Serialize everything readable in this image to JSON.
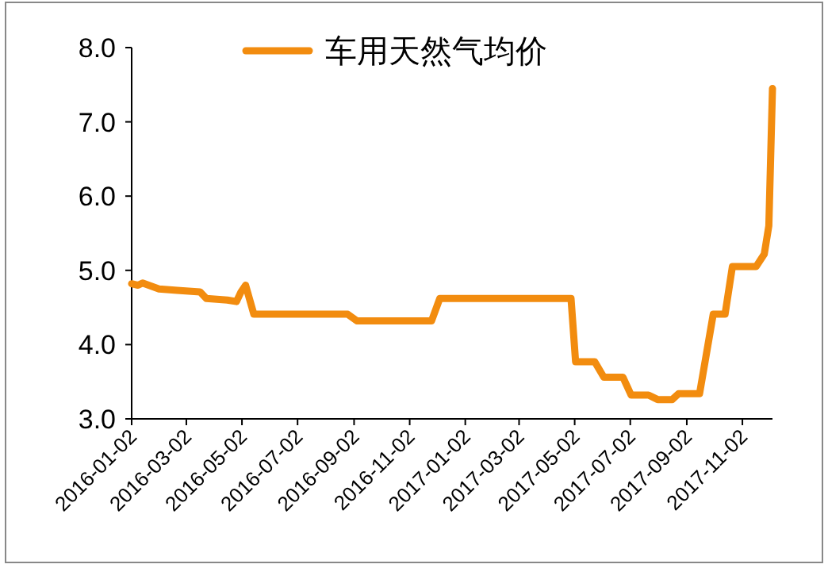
{
  "chart_data": {
    "type": "line",
    "legend": "top",
    "marker": "none",
    "line_style": "solid",
    "grid": false,
    "x": [
      "2016-01-02",
      "2016-01-09",
      "2016-01-14",
      "2016-02-01",
      "2016-02-21",
      "2016-03-17",
      "2016-03-24",
      "2016-04-16",
      "2016-04-26",
      "2016-05-01",
      "2016-05-06",
      "2016-05-15",
      "2016-08-26",
      "2016-09-05",
      "2016-11-26",
      "2016-12-05",
      "2017-04-28",
      "2017-05-03",
      "2017-05-24",
      "2017-06-03",
      "2017-06-24",
      "2017-07-03",
      "2017-07-22",
      "2017-08-01",
      "2017-08-17",
      "2017-08-24",
      "2017-09-16",
      "2017-10-01",
      "2017-10-14",
      "2017-10-22",
      "2017-11-17",
      "2017-11-26",
      "2017-12-01",
      "2017-12-05"
    ],
    "series": [
      {
        "name": "车用天然气均价",
        "color": "#f28c0f",
        "values": [
          4.82,
          4.8,
          4.83,
          4.75,
          4.73,
          4.71,
          4.62,
          4.6,
          4.58,
          4.71,
          4.8,
          4.41,
          4.41,
          4.32,
          4.32,
          4.62,
          4.62,
          3.77,
          3.77,
          3.56,
          3.56,
          3.32,
          3.32,
          3.26,
          3.26,
          3.34,
          3.34,
          4.41,
          4.41,
          5.05,
          5.05,
          5.22,
          5.6,
          7.45
        ]
      }
    ],
    "xlim": [
      "2016-01-02",
      "2017-12-05"
    ],
    "xticks": [
      "2016-01-02",
      "2016-03-02",
      "2016-05-02",
      "2016-07-02",
      "2016-09-02",
      "2016-11-02",
      "2017-01-02",
      "2017-03-02",
      "2017-05-02",
      "2017-07-02",
      "2017-09-02",
      "2017-11-02"
    ],
    "ylim": [
      3,
      8
    ],
    "yticks": [
      {
        "value": 3,
        "label": "3.0"
      },
      {
        "value": 4,
        "label": "4.0"
      },
      {
        "value": 5,
        "label": "5.0"
      },
      {
        "value": 6,
        "label": "6.0"
      },
      {
        "value": 7,
        "label": "7.0"
      },
      {
        "value": 8,
        "label": "8.0"
      }
    ]
  }
}
